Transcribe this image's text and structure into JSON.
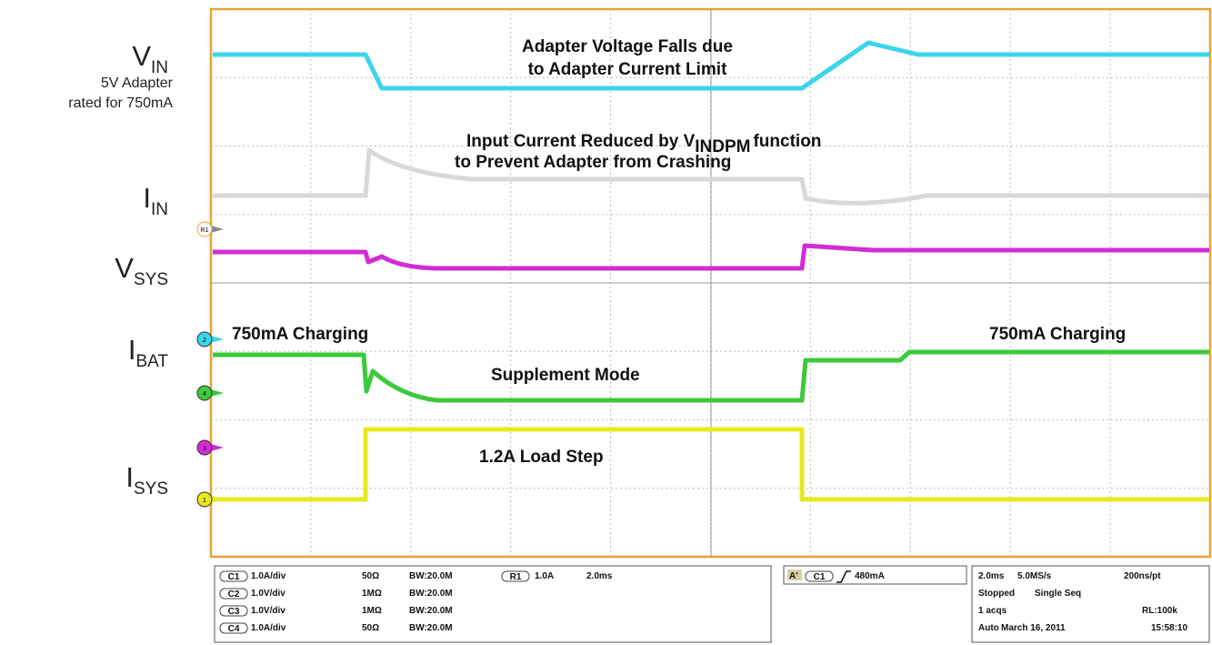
{
  "labels": [
    {
      "main": "V",
      "sub": "IN",
      "note": [
        "5V Adapter",
        "rated for 750mA"
      ]
    },
    {
      "main": "I",
      "sub": "IN"
    },
    {
      "main": "V",
      "sub": "SYS"
    },
    {
      "main": "I",
      "sub": "BAT"
    },
    {
      "main": "I",
      "sub": "SYS"
    }
  ],
  "annotations": {
    "adapter": [
      "Adapter Voltage Falls due",
      "to Adapter Current Limit"
    ],
    "input": {
      "pre": "Input Current Reduced by V",
      "sub": "INDPM",
      "post": "function",
      "line2": "to Prevent Adapter from Crashing"
    },
    "charge_left": "750mA Charging",
    "charge_right": "750mA Charging",
    "supplement": "Supplement Mode",
    "load": "1.2A Load Step"
  },
  "markers": [
    "R1",
    "2",
    "4",
    "3",
    "1"
  ],
  "channels": [
    {
      "id": "C1",
      "scale": "1.0A/div",
      "imp": "50Ω",
      "bw": "BW:20.0M"
    },
    {
      "id": "C2",
      "scale": "1.0V/div",
      "imp": "1MΩ",
      "bw": "BW:20.0M"
    },
    {
      "id": "C3",
      "scale": "1.0V/div",
      "imp": "1MΩ",
      "bw": "BW:20.0M"
    },
    {
      "id": "C4",
      "scale": "1.0A/div",
      "imp": "50Ω",
      "bw": "BW:20.0M"
    }
  ],
  "ref": {
    "id": "R1",
    "scale": "1.0A",
    "time": "2.0ms"
  },
  "trigger": {
    "mode": "A'",
    "src": "C1",
    "level": "480mA"
  },
  "acq": [
    [
      "2.0ms",
      "5.0MS/s",
      "200ns/pt"
    ],
    [
      "Stopped",
      "Single Seq"
    ],
    [
      "1 acqs",
      "RL:100k"
    ],
    [
      "Auto",
      "March 16, 2011",
      "15:58:10"
    ]
  ]
}
